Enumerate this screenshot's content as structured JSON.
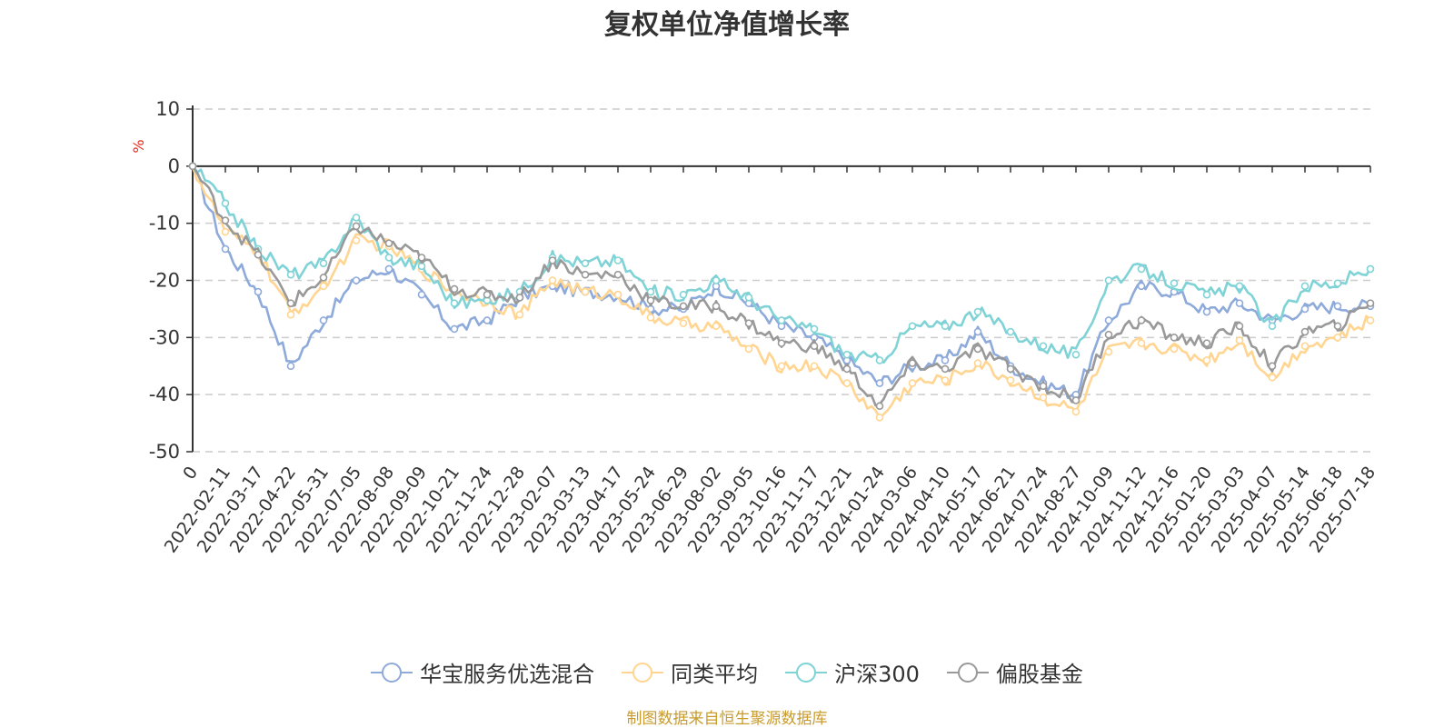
{
  "chart_data": {
    "type": "line",
    "title": "复权单位净值增长率",
    "ylabel": "%",
    "ylim": [
      -50,
      10
    ],
    "yticks": [
      10,
      0,
      -10,
      -20,
      -30,
      -40,
      -50
    ],
    "grid": true,
    "legend_position": "bottom",
    "source": "制图数据来自恒生聚源数据库",
    "x_ticks": [
      "0",
      "2022-02-11",
      "2022-03-17",
      "2022-04-22",
      "2022-05-31",
      "2022-07-05",
      "2022-08-08",
      "2022-09-09",
      "2022-10-21",
      "2022-11-24",
      "2022-12-28",
      "2023-02-07",
      "2023-03-13",
      "2023-04-17",
      "2023-05-24",
      "2023-06-29",
      "2023-08-02",
      "2023-09-05",
      "2023-10-16",
      "2023-11-17",
      "2023-12-21",
      "2024-01-24",
      "2024-03-06",
      "2024-04-10",
      "2024-05-17",
      "2024-06-21",
      "2024-07-24",
      "2024-08-27",
      "2024-10-09",
      "2024-11-12",
      "2024-12-16",
      "2025-01-20",
      "2025-03-03",
      "2025-04-07",
      "2025-05-14",
      "2025-06-18",
      "2025-07-18"
    ],
    "series": [
      {
        "name": "华宝服务优选混合",
        "color": "#8eaadb",
        "values": [
          0,
          -14.5,
          -22,
          -35,
          -27,
          -20,
          -18,
          -22.5,
          -28.5,
          -27,
          -23,
          -21,
          -22,
          -22.5,
          -25,
          -25,
          -21,
          -24,
          -28,
          -30,
          -34,
          -38,
          -35,
          -34,
          -29,
          -35,
          -38,
          -40,
          -27,
          -21,
          -22,
          -25.5,
          -24,
          -27,
          -25,
          -24.5,
          -24.5
        ]
      },
      {
        "name": "同类平均",
        "color": "#ffd591",
        "values": [
          0,
          -11.5,
          -15,
          -26,
          -21,
          -13,
          -14,
          -18,
          -22,
          -23.5,
          -26,
          -20,
          -22,
          -22.5,
          -26.5,
          -27.5,
          -28,
          -32,
          -35,
          -35,
          -38,
          -44,
          -38,
          -37.5,
          -34.5,
          -37.5,
          -40.5,
          -43,
          -32.5,
          -31,
          -32,
          -34,
          -30.5,
          -37,
          -31.5,
          -30,
          -27
        ]
      },
      {
        "name": "沪深300",
        "color": "#7fd3d6",
        "values": [
          0,
          -6.5,
          -14.5,
          -19,
          -17,
          -9,
          -16,
          -17.5,
          -24,
          -23.5,
          -22,
          -16,
          -17,
          -16.5,
          -22,
          -22.5,
          -20,
          -23,
          -27,
          -28.5,
          -33,
          -34,
          -28,
          -28,
          -25.5,
          -29,
          -31.5,
          -33,
          -20,
          -18,
          -20.5,
          -22.5,
          -21,
          -28,
          -21,
          -20.5,
          -18
        ]
      },
      {
        "name": "偏股基金",
        "color": "#999999",
        "values": [
          0,
          -9.5,
          -15.5,
          -24,
          -19.5,
          -10.5,
          -13.5,
          -16,
          -21.5,
          -22.5,
          -23,
          -16.5,
          -19,
          -19,
          -23.5,
          -24.5,
          -24.5,
          -27.5,
          -31,
          -31.5,
          -35.5,
          -42,
          -34.5,
          -35.5,
          -32,
          -35.5,
          -38.5,
          -41,
          -29.5,
          -27,
          -30,
          -31,
          -28,
          -35,
          -29,
          -28,
          -24
        ]
      }
    ]
  }
}
